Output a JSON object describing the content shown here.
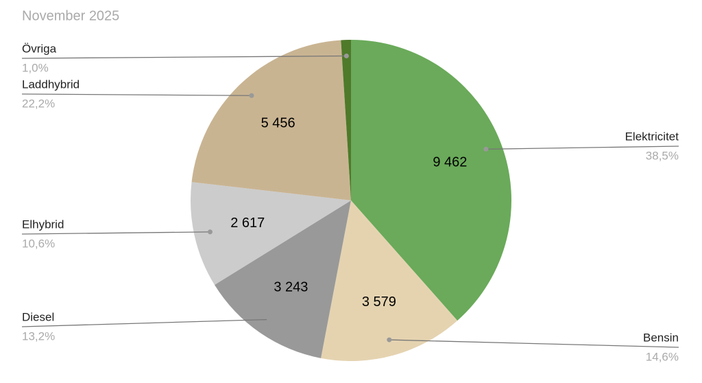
{
  "chart_data": {
    "type": "pie",
    "title": "November 2025",
    "categories": [
      "Elektricitet",
      "Bensin",
      "Diesel",
      "Elhybrid",
      "Laddhybrid",
      "Övriga"
    ],
    "values": [
      9462,
      3579,
      3243,
      2617,
      5456,
      246
    ],
    "value_labels": [
      "9 462",
      "3 579",
      "3 243",
      "2 617",
      "5 456",
      null
    ],
    "percent_labels": [
      "38,5%",
      "14,6%",
      "13,2%",
      "10,6%",
      "22,2%",
      "1,0%"
    ],
    "colors": [
      "#6aaa5a",
      "#e5d3b0",
      "#999999",
      "#cccccc",
      "#c9b492",
      "#4e7a2a"
    ]
  }
}
